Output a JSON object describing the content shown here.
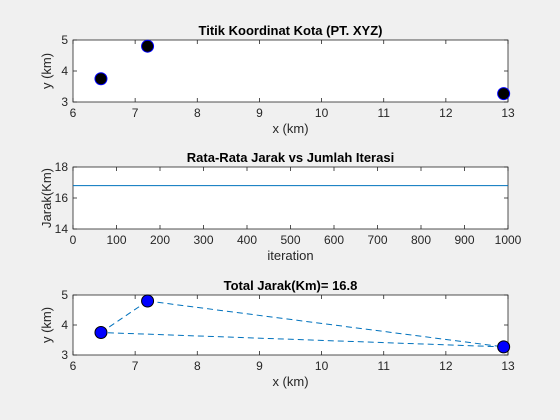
{
  "figure": {
    "background": "#f0f0f0",
    "axes_background": "#ffffff"
  },
  "chart_data": [
    {
      "type": "scatter",
      "title": "Titik Koordinat Kota (PT. XYZ)",
      "xlabel": "x  (km)",
      "ylabel": "y  (km)",
      "xlim": [
        6,
        13
      ],
      "ylim": [
        3,
        5
      ],
      "xticks": [
        6,
        7,
        8,
        9,
        10,
        11,
        12,
        13
      ],
      "yticks": [
        3,
        4,
        5
      ],
      "grid": false,
      "marker_color": "#000000",
      "marker_edge": "#0000ff",
      "points": [
        {
          "x": 6.45,
          "y": 3.75
        },
        {
          "x": 7.2,
          "y": 4.8
        },
        {
          "x": 12.93,
          "y": 3.27
        }
      ]
    },
    {
      "type": "line",
      "title": "Rata-Rata Jarak vs Jumlah Iterasi",
      "xlabel": "iteration",
      "ylabel": "Jarak(Km)",
      "xlim": [
        0,
        1000
      ],
      "ylim": [
        14,
        18
      ],
      "xticks": [
        0,
        100,
        200,
        300,
        400,
        500,
        600,
        700,
        800,
        900,
        1000
      ],
      "yticks": [
        14,
        16,
        18
      ],
      "grid": false,
      "line_color": "#0072bd",
      "x": [
        0,
        1000
      ],
      "y": [
        16.8,
        16.8
      ]
    },
    {
      "type": "line",
      "title": "Total Jarak(Km)= 16.8",
      "xlabel": "x (km)",
      "ylabel": "y (km)",
      "xlim": [
        6,
        13
      ],
      "ylim": [
        3,
        5
      ],
      "xticks": [
        6,
        7,
        8,
        9,
        10,
        11,
        12,
        13
      ],
      "yticks": [
        3,
        4,
        5
      ],
      "grid": false,
      "line_color": "#0072bd",
      "line_style": "dashed",
      "marker_color": "#0000ff",
      "marker_edge": "#000000",
      "route": [
        {
          "x": 6.45,
          "y": 3.75
        },
        {
          "x": 7.2,
          "y": 4.8
        },
        {
          "x": 12.93,
          "y": 3.27
        },
        {
          "x": 6.45,
          "y": 3.75
        }
      ]
    }
  ]
}
